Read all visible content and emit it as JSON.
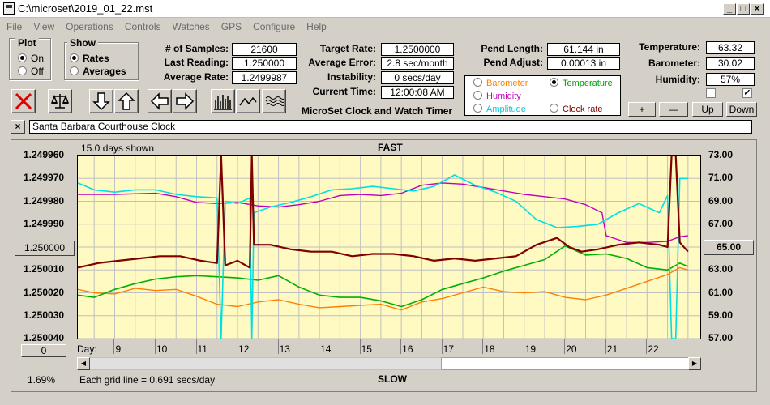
{
  "window": {
    "title": "C:\\microset\\2019_01_22.mst"
  },
  "menu": [
    "File",
    "View",
    "Operations",
    "Controls",
    "Watches",
    "GPS",
    "Configure",
    "Help"
  ],
  "plot_group": {
    "title": "Plot",
    "on": "On",
    "off": "Off",
    "selected": "On"
  },
  "show_group": {
    "title": "Show",
    "rates": "Rates",
    "averages": "Averages",
    "selected": "Rates"
  },
  "stats": {
    "samples_label": "# of Samples:",
    "samples": "21600",
    "last_reading_label": "Last Reading:",
    "last_reading": "1.250000",
    "average_rate_label": "Average Rate:",
    "average_rate": "1.2499987",
    "target_rate_label": "Target Rate:",
    "target_rate": "1.2500000",
    "average_error_label": "Average Error:",
    "average_error": "2.8 sec/month",
    "instability_label": "Instability:",
    "instability": "0 secs/day",
    "current_time_label": "Current Time:",
    "current_time": "12:00:08 AM",
    "pend_length_label": "Pend Length:",
    "pend_length": "61.144 in",
    "pend_adjust_label": "Pend Adjust:",
    "pend_adjust": "0.00013 in",
    "temperature_label": "Temperature:",
    "temperature": "63.32",
    "barometer_label": "Barometer:",
    "barometer": "30.02",
    "humidity_label": "Humidity:",
    "humidity": "57%"
  },
  "app_subtitle": "MicroSet Clock and Watch Timer",
  "legend": {
    "barometer": "Barometer",
    "humidity": "Humidity",
    "amplitude": "Amplitude",
    "temperature": "Temperature",
    "clock_rate": "Clock rate",
    "selected": "Temperature"
  },
  "scale_buttons": {
    "plus": "+",
    "minus": "—",
    "up": "Up",
    "down": "Down"
  },
  "checkboxes": {
    "left": "",
    "right": "✓"
  },
  "clock_name_close": "×",
  "clock_name": "Santa Barbara Courthouse Clock",
  "chart_header": {
    "days_shown": "15.0 days shown",
    "fast": "FAST",
    "slow": "SLOW",
    "grid_note": "Each grid line = 0.691 secs/day",
    "percent": "1.69%"
  },
  "left_axis_button": "1.250000",
  "right_axis_button": "65.00",
  "bottom_left_button": "0",
  "x_label": "Day:",
  "colors": {
    "barometer": "#ff8000",
    "humidity": "#c000c0",
    "amplitude": "#00e0e0",
    "temperature": "#00b000",
    "clock_rate": "#800000",
    "plot_bg": "#fff9c2",
    "grid": "#c0c0c0"
  },
  "chart_data": {
    "type": "line",
    "x_label": "Day:",
    "x_ticks": [
      "9",
      "10",
      "11",
      "12",
      "13",
      "14",
      "15",
      "16",
      "17",
      "18",
      "19",
      "20",
      "21",
      "22"
    ],
    "xlim": [
      8.1,
      23.3
    ],
    "y_left_ticks": [
      "1.249960",
      "1.249970",
      "1.249980",
      "1.249990",
      "1.250000",
      "1.250010",
      "1.250020",
      "1.250030",
      "1.250040"
    ],
    "y_left_range": [
      1.24996,
      1.25004
    ],
    "y_right_ticks": [
      "73.00",
      "71.00",
      "69.00",
      "67.00",
      "65.00",
      "63.00",
      "61.00",
      "59.00",
      "57.00"
    ],
    "y_right_range": [
      57,
      73
    ],
    "grid": true,
    "series": [
      {
        "name": "Clock rate",
        "color": "#800000",
        "axis": "left",
        "x": [
          8.1,
          8.6,
          9.1,
          9.6,
          10.1,
          10.6,
          11.1,
          11.5,
          11.6,
          11.7,
          12.0,
          12.3,
          12.35,
          12.4,
          12.8,
          13.3,
          13.8,
          14.3,
          14.8,
          15.3,
          15.8,
          16.3,
          16.8,
          17.3,
          17.8,
          18.3,
          18.8,
          19.3,
          19.8,
          20.1,
          20.4,
          20.8,
          21.3,
          21.8,
          22.3,
          22.5,
          22.6,
          22.7,
          22.8,
          23.0
        ],
        "y": [
          1.250009,
          1.250007,
          1.250006,
          1.250005,
          1.250004,
          1.250004,
          1.250006,
          1.250007,
          1.24996,
          1.250008,
          1.250006,
          1.250009,
          1.24996,
          1.249999,
          1.249999,
          1.250001,
          1.250002,
          1.250002,
          1.250004,
          1.250003,
          1.250003,
          1.250004,
          1.250006,
          1.250005,
          1.250006,
          1.250005,
          1.250004,
          1.249999,
          1.249996,
          1.25,
          1.250002,
          1.250001,
          1.249999,
          1.249998,
          1.249999,
          1.25,
          1.24996,
          1.24996,
          1.249998,
          1.250002
        ]
      },
      {
        "name": "Barometer",
        "color": "#ff8000",
        "axis": "right",
        "x": [
          8.1,
          8.5,
          9.0,
          9.5,
          10.0,
          10.5,
          11.0,
          11.5,
          12.0,
          12.5,
          13.0,
          13.5,
          14.0,
          14.5,
          15.0,
          15.5,
          16.0,
          16.5,
          17.0,
          17.5,
          18.0,
          18.5,
          19.0,
          19.5,
          20.0,
          20.5,
          21.0,
          21.5,
          22.0,
          22.5,
          22.8,
          23.0
        ],
        "y": [
          61.3,
          61.0,
          60.9,
          61.4,
          61.2,
          61.3,
          60.7,
          60.0,
          59.8,
          60.2,
          60.4,
          60.0,
          59.7,
          59.8,
          59.9,
          60.0,
          59.5,
          60.2,
          60.5,
          61.0,
          61.5,
          61.1,
          61.0,
          61.1,
          60.6,
          60.4,
          60.8,
          61.4,
          62.0,
          62.6,
          63.2,
          63.0
        ]
      },
      {
        "name": "Temperature",
        "color": "#00b000",
        "axis": "right",
        "x": [
          8.1,
          8.5,
          9.0,
          9.5,
          10.0,
          10.5,
          11.0,
          11.5,
          12.0,
          12.5,
          13.0,
          13.5,
          14.0,
          14.5,
          15.0,
          15.5,
          16.0,
          16.5,
          17.0,
          17.5,
          18.0,
          18.5,
          19.0,
          19.5,
          20.0,
          20.5,
          21.0,
          21.5,
          22.0,
          22.5,
          22.8,
          23.0
        ],
        "y": [
          60.8,
          60.6,
          61.3,
          61.8,
          62.2,
          62.4,
          62.5,
          62.4,
          62.3,
          62.1,
          62.5,
          61.5,
          60.8,
          60.6,
          60.6,
          60.3,
          59.8,
          60.4,
          61.3,
          61.8,
          62.3,
          62.9,
          63.4,
          63.9,
          65.1,
          64.3,
          64.4,
          64.0,
          63.2,
          63.0,
          63.6,
          63.3
        ]
      },
      {
        "name": "Humidity",
        "color": "#c000c0",
        "axis": "right",
        "x": [
          8.1,
          9.0,
          10.0,
          10.5,
          11.0,
          11.5,
          12.0,
          12.5,
          13.0,
          13.5,
          14.0,
          14.5,
          15.0,
          15.5,
          16.0,
          16.5,
          17.0,
          17.5,
          18.0,
          18.5,
          19.0,
          19.5,
          20.0,
          20.5,
          20.9,
          21.0,
          21.5,
          22.0,
          22.5,
          22.8,
          23.0
        ],
        "y": [
          69.6,
          69.6,
          69.7,
          69.4,
          68.9,
          68.8,
          68.9,
          68.6,
          68.5,
          68.7,
          69.0,
          69.5,
          69.6,
          69.5,
          69.7,
          70.4,
          70.6,
          70.5,
          70.2,
          69.9,
          69.6,
          69.4,
          69.2,
          68.7,
          68.0,
          66.0,
          65.4,
          65.4,
          65.5,
          65.9,
          66.0
        ]
      },
      {
        "name": "Amplitude",
        "color": "#00e0e0",
        "axis": "right",
        "x": [
          8.1,
          8.5,
          9.0,
          9.5,
          10.0,
          10.5,
          11.0,
          11.5,
          11.6,
          11.7,
          12.0,
          12.3,
          12.35,
          12.4,
          12.8,
          13.3,
          13.8,
          14.3,
          14.8,
          15.3,
          15.8,
          16.3,
          16.8,
          17.3,
          17.8,
          18.3,
          18.8,
          19.3,
          19.8,
          20.3,
          20.8,
          21.3,
          21.8,
          22.3,
          22.5,
          22.6,
          22.7,
          22.8,
          23.0
        ],
        "y": [
          70.6,
          70.0,
          69.8,
          70.0,
          70.0,
          69.6,
          69.4,
          69.3,
          57.0,
          69.0,
          68.8,
          69.3,
          57.0,
          68.0,
          68.5,
          68.9,
          69.4,
          70.0,
          70.1,
          70.3,
          70.1,
          69.9,
          70.3,
          71.3,
          70.4,
          69.8,
          69.0,
          67.4,
          66.7,
          66.8,
          67.0,
          68.0,
          68.8,
          68.0,
          69.5,
          57.0,
          57.0,
          71.0,
          71.0
        ]
      }
    ]
  }
}
